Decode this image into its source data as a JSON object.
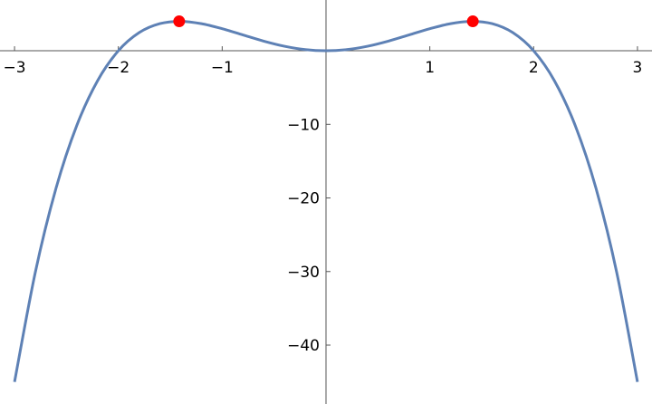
{
  "chart_data": {
    "type": "line",
    "x": [
      -3,
      -2.8,
      -2.6,
      -2.4,
      -2.2,
      -2,
      -1.8,
      -1.6,
      -1.4,
      -1.2,
      -1,
      -0.8,
      -0.6,
      -0.4,
      -0.2,
      0,
      0.2,
      0.4,
      0.6,
      0.8,
      1,
      1.2,
      1.4,
      1.6,
      1.8,
      2,
      2.2,
      2.4,
      2.6,
      2.8,
      3
    ],
    "series": [
      {
        "color": "#5e81b5",
        "values": [
          -45,
          -30.1056,
          -18.6576,
          -10.1376,
          -4.0656,
          0,
          2.4624,
          3.6864,
          3.9984,
          3.6864,
          3,
          2.1504,
          1.3104,
          0.6144,
          0.1584,
          0,
          0.1584,
          0.6144,
          1.3104,
          2.1504,
          3,
          3.6864,
          3.9984,
          3.6864,
          2.4624,
          0,
          -4.0656,
          -10.1376,
          -18.6576,
          -30.1056,
          -45
        ]
      }
    ],
    "points": {
      "color": "#ff0000",
      "x": [
        -1.41421,
        1.41421
      ],
      "y": [
        4,
        4
      ]
    },
    "xlim": [
      -3.14,
      3.14
    ],
    "ylim": [
      -48,
      6.9
    ],
    "xticks": [
      {
        "value": -3,
        "label": "−3"
      },
      {
        "value": -2,
        "label": "−2"
      },
      {
        "value": -1,
        "label": "−1"
      },
      1,
      2,
      3
    ],
    "yticks": [
      {
        "value": -40,
        "label": "−40"
      },
      {
        "value": -30,
        "label": "−30"
      },
      {
        "value": -20,
        "label": "−20"
      },
      {
        "value": -10,
        "label": "−10"
      }
    ]
  }
}
